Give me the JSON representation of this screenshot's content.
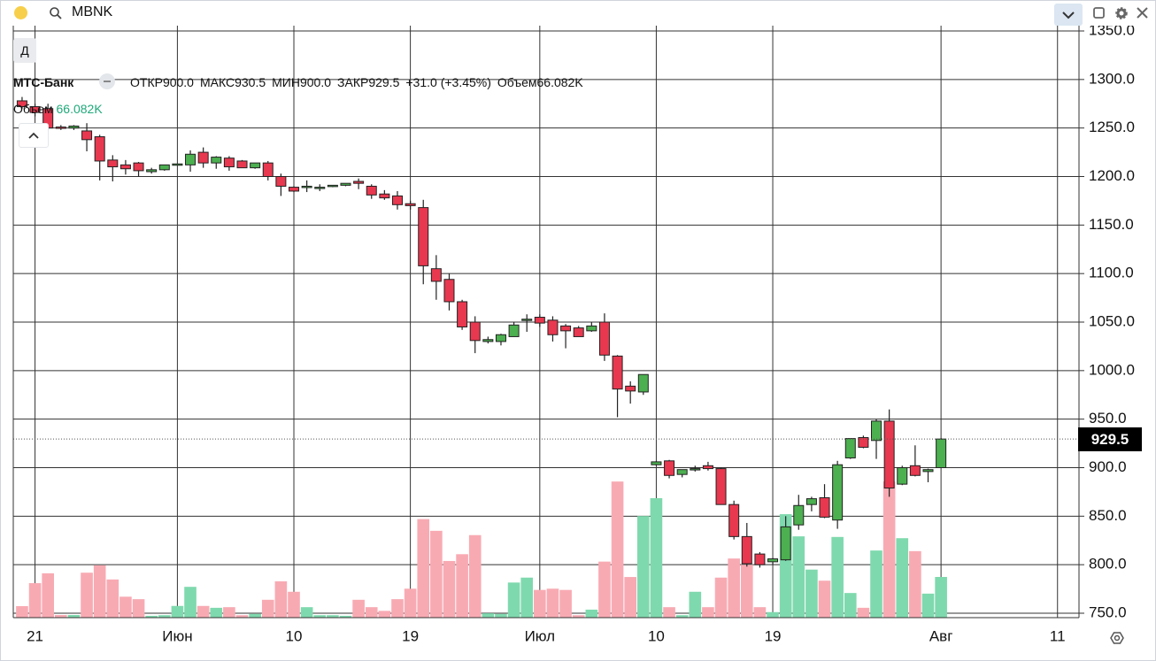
{
  "ui": {
    "symbol": "MBNK",
    "interval": "Д",
    "instrument": "МТС-Банк",
    "header": {
      "items": [
        {
          "label": "ОТКР",
          "value": "900.0"
        },
        {
          "label": "МАКС",
          "value": "930.5"
        },
        {
          "label": "МИН",
          "value": "900.0"
        },
        {
          "label": "ЗАКР",
          "value": "929.5"
        }
      ],
      "change": "+31.0 (+3.45%)",
      "volume_label": "Объем",
      "volume_value": "66.082K"
    },
    "last_price": "929.5"
  },
  "chart_data": {
    "type": "candlestick",
    "open": [
      1278,
      1272,
      1270,
      1251,
      1250,
      1247,
      1241,
      1217,
      1212,
      1214,
      1205,
      1207,
      1212,
      1212,
      1225,
      1214,
      1219,
      1216,
      1209,
      1214,
      1200,
      1189,
      1190,
      1188,
      1190,
      1191,
      1195,
      1190,
      1182,
      1180,
      1172,
      1168,
      1105,
      1094,
      1071,
      1050,
      1030,
      1030,
      1035,
      1053,
      1055,
      1052,
      1046,
      1044,
      1041,
      1050,
      1015,
      984,
      978,
      903,
      907,
      893,
      898,
      902,
      899,
      862,
      829,
      811,
      803,
      805,
      841,
      862,
      869,
      846,
      910,
      931,
      928,
      948,
      883,
      902,
      896,
      900
    ],
    "high": [
      1282,
      1275,
      1275,
      1253,
      1253,
      1255,
      1243,
      1222,
      1217,
      1215,
      1209,
      1212,
      1213,
      1227,
      1230,
      1221,
      1221,
      1217,
      1214,
      1216,
      1203,
      1190,
      1196,
      1192,
      1191,
      1193,
      1198,
      1192,
      1186,
      1185,
      1175,
      1176,
      1119,
      1100,
      1073,
      1056,
      1035,
      1038,
      1050,
      1058,
      1058,
      1056,
      1048,
      1046,
      1050,
      1059,
      1016,
      989,
      996,
      907,
      908,
      898,
      902,
      906,
      900,
      866,
      843,
      813,
      807,
      850,
      872,
      870,
      883,
      907,
      930,
      933,
      950,
      960,
      902,
      923,
      899,
      930.5
    ],
    "low": [
      1270,
      1262,
      1246,
      1248,
      1248,
      1226,
      1196,
      1195,
      1202,
      1200,
      1203,
      1206,
      1212,
      1205,
      1209,
      1208,
      1206,
      1209,
      1208,
      1196,
      1180,
      1184,
      1184,
      1185,
      1189,
      1190,
      1187,
      1177,
      1176,
      1166,
      1166,
      1089,
      1073,
      1062,
      1042,
      1018,
      1028,
      1026,
      1035,
      1040,
      1045,
      1030,
      1023,
      1035,
      1040,
      1010,
      952,
      966,
      975,
      902,
      889,
      890,
      896,
      897,
      862,
      826,
      798,
      797,
      800,
      804,
      836,
      855,
      848,
      837,
      909,
      920,
      909,
      870,
      882,
      891,
      885,
      900
    ],
    "close": [
      1272,
      1266,
      1250,
      1250,
      1252,
      1238,
      1216,
      1210,
      1208,
      1206,
      1207,
      1212,
      1213,
      1223,
      1214,
      1220,
      1210,
      1209,
      1214,
      1200,
      1190,
      1185,
      1190,
      1189,
      1191,
      1193,
      1193,
      1181,
      1178,
      1171,
      1170,
      1108,
      1092,
      1071,
      1045,
      1031,
      1032,
      1037,
      1047,
      1053,
      1049,
      1037,
      1041,
      1035,
      1046,
      1016,
      981,
      979,
      996,
      906,
      892,
      898,
      899,
      899,
      862,
      829,
      801,
      800,
      806,
      839,
      861,
      868,
      849,
      903,
      930,
      921,
      948,
      879,
      900,
      892,
      898,
      929.5
    ],
    "volume": [
      18.7,
      56,
      72,
      4.3,
      4.3,
      73,
      85,
      62,
      34,
      30,
      3,
      4,
      19,
      50,
      19,
      16,
      17,
      4,
      6,
      29,
      59,
      42,
      17,
      4,
      4,
      3,
      29,
      17,
      11,
      30,
      47,
      160,
      141,
      92,
      103,
      134,
      7,
      6,
      57,
      65,
      45,
      47,
      45,
      4,
      13,
      91,
      221,
      66,
      165,
      194,
      17,
      4,
      42,
      17,
      65,
      96,
      86,
      17,
      9,
      168,
      132,
      78,
      60,
      131,
      40,
      16,
      109,
      221,
      129,
      108,
      39,
      66.082
    ],
    "up_color": "#4caf50",
    "down_color": "#e8384f",
    "up_volume_color": "#7fd9ae",
    "down_volume_color": "#f8aab3",
    "xlim": [
      -0.68,
      81.66
    ],
    "xticks": [
      {
        "value": 1,
        "label": "21"
      },
      {
        "value": 12,
        "label": "Июн"
      },
      {
        "value": 21,
        "label": "10"
      },
      {
        "value": 30,
        "label": "19"
      },
      {
        "value": 40,
        "label": "Июл"
      },
      {
        "value": 49,
        "label": "10"
      },
      {
        "value": 58,
        "label": "19"
      },
      {
        "value": 71,
        "label": "Авг"
      },
      {
        "value": 80,
        "label": "11"
      }
    ],
    "ylim": [
      750,
      1350
    ],
    "yticks": [
      {
        "value": 750,
        "label": "750.0"
      },
      {
        "value": 800,
        "label": "800.0"
      },
      {
        "value": 850,
        "label": "850.0"
      },
      {
        "value": 900,
        "label": "900.0"
      },
      {
        "value": 950,
        "label": "950.0"
      },
      {
        "value": 1000,
        "label": "1000.0"
      },
      {
        "value": 1050,
        "label": "1050.0"
      },
      {
        "value": 1100,
        "label": "1100.0"
      },
      {
        "value": 1150,
        "label": "1150.0"
      },
      {
        "value": 1200,
        "label": "1200.0"
      },
      {
        "value": 1250,
        "label": "1250.0"
      },
      {
        "value": 1300,
        "label": "1300.0"
      },
      {
        "value": 1350,
        "label": "1350.0"
      }
    ],
    "grid": true
  }
}
